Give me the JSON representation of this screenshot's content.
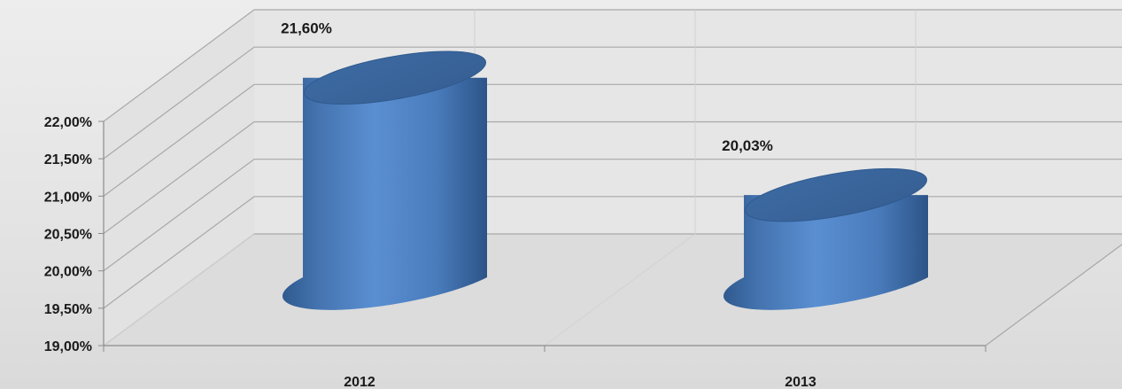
{
  "chart_data": {
    "type": "bar",
    "style": "3d-cylinder",
    "categories": [
      "2012",
      "2013"
    ],
    "series": [
      {
        "values": [
          21.6,
          20.03
        ],
        "color": "#4f81bd"
      }
    ],
    "data_labels": [
      "21,60%",
      "20,03%"
    ],
    "y_ticks": [
      19.0,
      19.5,
      20.0,
      20.5,
      21.0,
      21.5,
      22.0
    ],
    "y_tick_labels": [
      "19,00%",
      "19,50%",
      "20,00%",
      "20,50%",
      "21,00%",
      "21,50%",
      "22,00%"
    ],
    "ylim": [
      19.0,
      22.0
    ],
    "grid": true,
    "legend": "none"
  }
}
